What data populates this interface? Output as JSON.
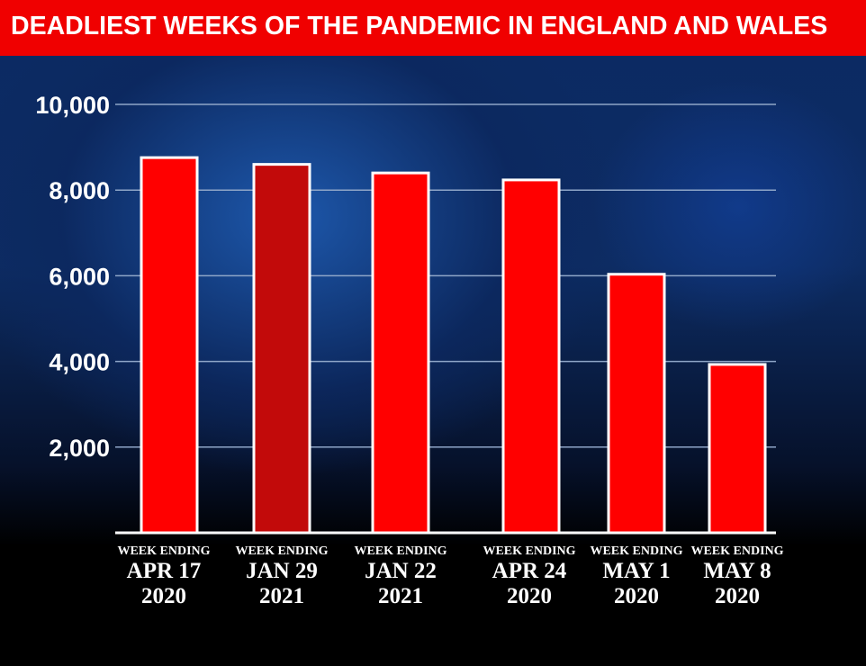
{
  "header": {
    "title": "DEADLIEST WEEKS OF THE PANDEMIC IN ENGLAND AND WALES"
  },
  "colors": {
    "banner": "#f00000",
    "bar": "#ff0000",
    "bar_highlight": "#c20a0a",
    "bar_outline": "#ffffff",
    "grid": "#8fa6c8",
    "text": "#ffffff"
  },
  "chart_data": {
    "type": "bar",
    "title": "DEADLIEST WEEKS OF THE PANDEMIC IN ENGLAND AND WALES",
    "xlabel": "",
    "ylabel": "",
    "ylim": [
      0,
      10000
    ],
    "yticks": [
      2000,
      4000,
      6000,
      8000,
      10000
    ],
    "ytick_labels": [
      "2,000",
      "4,000",
      "6,000",
      "8,000",
      "10,000"
    ],
    "grid": true,
    "categories": [
      {
        "prefix": "WEEK ENDING",
        "date": "APR 17",
        "year": "2020"
      },
      {
        "prefix": "WEEK ENDING",
        "date": "JAN 29",
        "year": "2021"
      },
      {
        "prefix": "WEEK ENDING",
        "date": "JAN 22",
        "year": "2021"
      },
      {
        "prefix": "WEEK ENDING",
        "date": "APR 24",
        "year": "2020"
      },
      {
        "prefix": "WEEK ENDING",
        "date": "MAY 1",
        "year": "2020"
      },
      {
        "prefix": "WEEK ENDING",
        "date": "MAY 8",
        "year": "2020"
      }
    ],
    "values": [
      8758,
      8600,
      8400,
      8237,
      6035,
      3930
    ],
    "highlight_index": 1
  }
}
